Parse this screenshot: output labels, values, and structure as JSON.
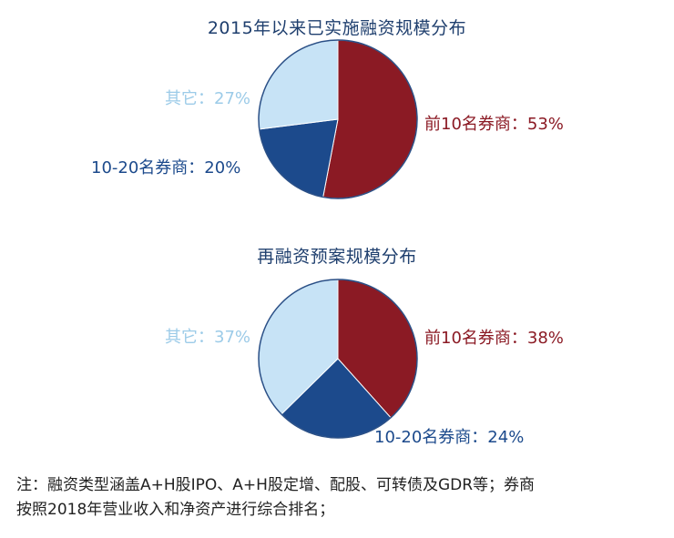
{
  "chart_data": [
    {
      "type": "pie",
      "title": "2015年以来已实施融资规模分布",
      "slices": [
        {
          "label": "前10名券商：53%",
          "value": 53,
          "color": "#8b1a24"
        },
        {
          "label": "10-20名券商：20%",
          "value": 20,
          "color": "#1c4a8c"
        },
        {
          "label": "其它：27%",
          "value": 27,
          "color": "#c7e3f6"
        }
      ],
      "label_colors": [
        "#8b1a24",
        "#1c4a8c",
        "#9ccbe8"
      ]
    },
    {
      "type": "pie",
      "title": "再融资预案规模分布",
      "slices": [
        {
          "label": "前10名券商：38%",
          "value": 38,
          "color": "#8b1a24"
        },
        {
          "label": "10-20名券商：24%",
          "value": 24,
          "color": "#1c4a8c"
        },
        {
          "label": "其它：37%",
          "value": 37,
          "color": "#c7e3f6"
        }
      ],
      "label_colors": [
        "#8b1a24",
        "#1c4a8c",
        "#9ccbe8"
      ]
    }
  ],
  "footnote": {
    "line1": "注：融资类型涵盖A+H股IPO、A+H股定增、配股、可转债及GDR等；券商",
    "line2": "按照2018年营业收入和净资产进行综合排名；"
  }
}
